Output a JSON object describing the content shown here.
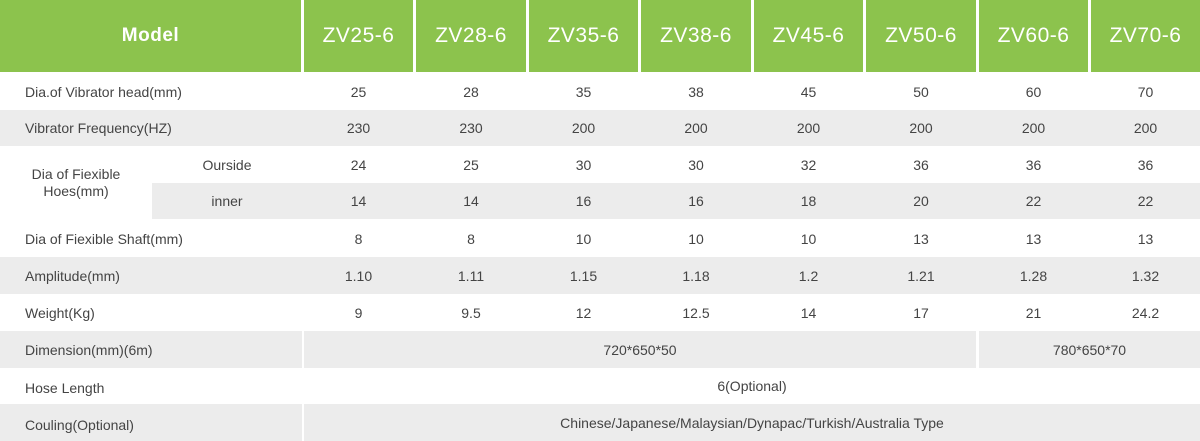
{
  "header": {
    "model_label": "Model",
    "models": [
      "ZV25-6",
      "ZV28-6",
      "ZV35-6",
      "ZV38-6",
      "ZV45-6",
      "ZV50-6",
      "ZV60-6",
      "ZV70-6"
    ]
  },
  "rows": {
    "head_dia": {
      "label": "Dia.of Vibrator head(mm)",
      "values": [
        "25",
        "28",
        "35",
        "38",
        "45",
        "50",
        "60",
        "70"
      ]
    },
    "frequency": {
      "label": "Vibrator Frequency(HZ)",
      "values": [
        "230",
        "230",
        "200",
        "200",
        "200",
        "200",
        "200",
        "200"
      ]
    },
    "hose_dia": {
      "label": "Dia of Fiexible Hoes(mm)",
      "outside_label": "Ourside",
      "outside_values": [
        "24",
        "25",
        "30",
        "30",
        "32",
        "36",
        "36",
        "36"
      ],
      "inner_label": "inner",
      "inner_values": [
        "14",
        "14",
        "16",
        "16",
        "18",
        "20",
        "22",
        "22"
      ]
    },
    "shaft_dia": {
      "label": "Dia of Fiexible Shaft(mm)",
      "values": [
        "8",
        "8",
        "10",
        "10",
        "10",
        "13",
        "13",
        "13"
      ]
    },
    "amplitude": {
      "label": "Amplitude(mm)",
      "values": [
        "1.10",
        "1.11",
        "1.15",
        "1.18",
        "1.2",
        "1.21",
        "1.28",
        "1.32"
      ]
    },
    "weight": {
      "label": "Weight(Kg)",
      "values": [
        "9",
        "9.5",
        "12",
        "12.5",
        "14",
        "17",
        "21",
        "24.2"
      ]
    },
    "dimension": {
      "label": "Dimension(mm)(6m)",
      "value_a": "720*650*50",
      "value_b": "780*650*70"
    },
    "hose_length": {
      "label": "Hose Length",
      "value": "6(Optional)"
    },
    "couling": {
      "label": "Couling(Optional)",
      "value": "Chinese/Japanese/Malaysian/Dynapac/Turkish/Australia Type"
    }
  },
  "colors": {
    "header_green": "#8cc34d",
    "row_grey": "#ececec",
    "text": "#444444"
  }
}
